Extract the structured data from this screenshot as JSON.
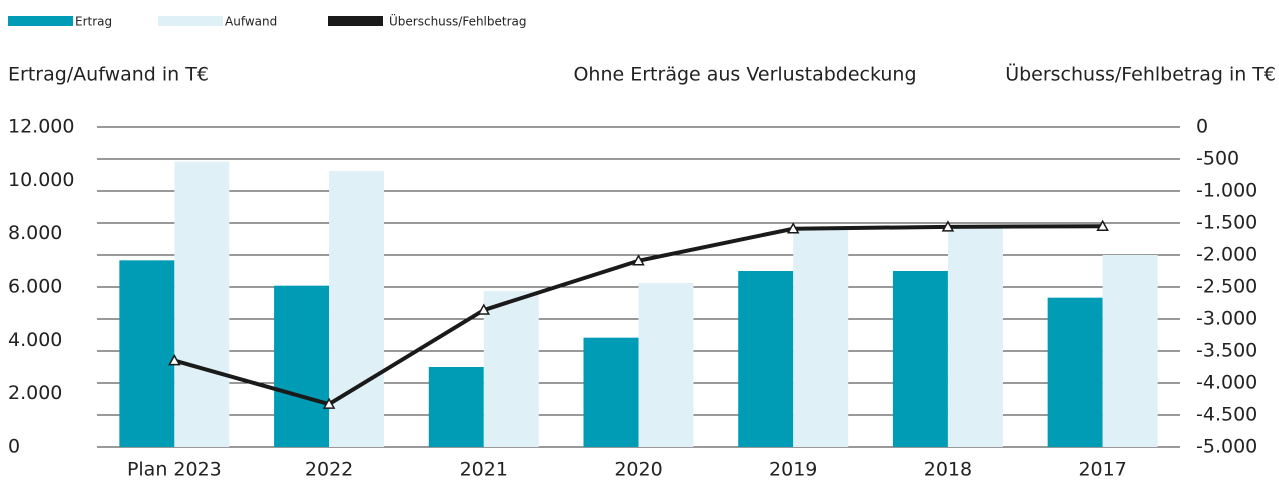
{
  "chart_data": {
    "type": "bar",
    "title": "Ohne Erträge aus Verlustabdeckung",
    "y_label": "Ertrag/Aufwand in T€",
    "y2_label": "Überschuss/Fehlbetrag in T€",
    "categories": [
      "Plan 2023",
      "2022",
      "2021",
      "2020",
      "2019",
      "2018",
      "2017"
    ],
    "series": [
      {
        "name": "Ertrag",
        "type": "bar",
        "color": "#009bb5",
        "values": [
          7000,
          6050,
          3000,
          4100,
          6600,
          6600,
          5600
        ]
      },
      {
        "name": "Aufwand",
        "type": "bar",
        "color": "#dff0f7",
        "values": [
          10700,
          10350,
          5850,
          6150,
          8200,
          8200,
          7200
        ]
      },
      {
        "name": "Überschuss/Fehlbetrag",
        "type": "line",
        "axis": "y2",
        "color": "#1a1a1a",
        "values": [
          -3650,
          -4330,
          -2860,
          -2090,
          -1590,
          -1560,
          -1550
        ]
      }
    ],
    "ylim": [
      0,
      12000
    ],
    "yticks": [
      0,
      {
        "value": 2000,
        "label": "2.000"
      },
      {
        "value": 4000,
        "label": "4.000"
      },
      {
        "value": 6000,
        "label": "6.000"
      },
      {
        "value": 8000,
        "label": "8.000"
      },
      {
        "value": 10000,
        "label": "10.000"
      },
      {
        "value": 12000,
        "label": "12.000"
      }
    ],
    "y2lim": [
      -5000,
      0
    ],
    "y2ticks": [
      0,
      -500,
      {
        "value": -1000,
        "label": "-1.000"
      },
      {
        "value": -1500,
        "label": "-1.500"
      },
      {
        "value": -2000,
        "label": "-2.000"
      },
      {
        "value": -2500,
        "label": "-2.500"
      },
      {
        "value": -3000,
        "label": "-3.000"
      },
      {
        "value": -3500,
        "label": "-3.500"
      },
      {
        "value": -4000,
        "label": "-4.000"
      },
      {
        "value": -4500,
        "label": "-4.500"
      },
      {
        "value": -5000,
        "label": "-5.000"
      }
    ],
    "grid": true
  }
}
